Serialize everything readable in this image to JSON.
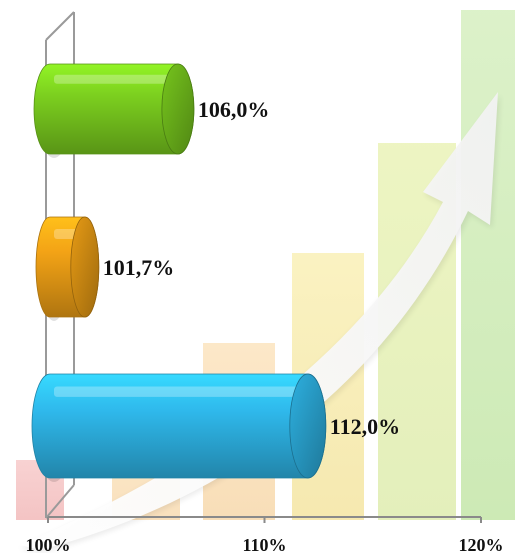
{
  "chart_data": {
    "type": "bar",
    "orientation": "horizontal",
    "categories": [
      "",
      "",
      ""
    ],
    "series": [
      {
        "values": [
          106.0,
          101.7,
          112.0
        ]
      }
    ],
    "data_labels": [
      "106,0%",
      "101,7%",
      "112,0%"
    ],
    "bar_colors": [
      "#7ccf1f",
      "#f3a316",
      "#2fb9ec"
    ],
    "xlim": [
      100,
      120
    ],
    "x_ticks": [
      100,
      110,
      120
    ],
    "x_tick_labels": [
      "100%",
      "110%",
      "120%"
    ],
    "title": "",
    "xlabel": "",
    "ylabel": "",
    "grid": false,
    "legend": "none"
  }
}
